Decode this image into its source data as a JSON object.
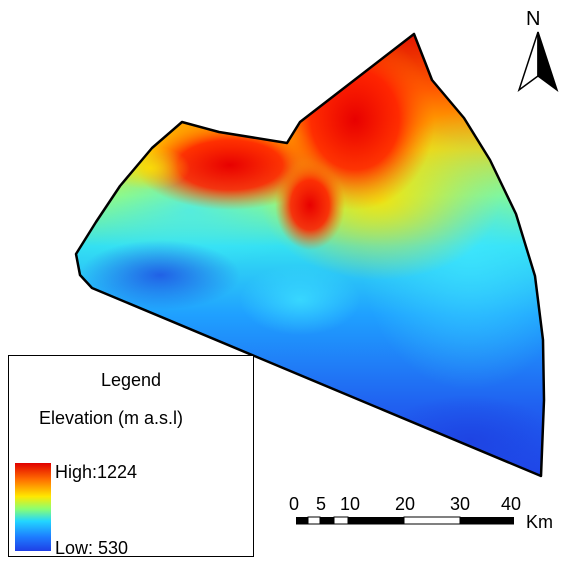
{
  "map": {
    "legend": {
      "title": "Legend",
      "subtitle": "Elevation (m a.s.l)",
      "high_label": "High:1224",
      "low_label": "Low: 530",
      "high_value": 1224,
      "low_value": 530,
      "colors": [
        "#e00000",
        "#ff6a00",
        "#ffe800",
        "#8cff70",
        "#22d6ff",
        "#1d7dff",
        "#1f3fe6"
      ]
    },
    "scale_bar": {
      "labels": [
        "0",
        "5",
        "10",
        "20",
        "30",
        "40"
      ],
      "unit": "Km"
    },
    "north_arrow": {
      "label": "N",
      "icon": "north-arrow-icon"
    }
  }
}
